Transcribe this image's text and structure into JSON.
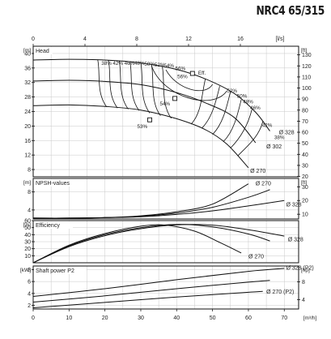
{
  "page": {
    "title": "NRC4 65/315"
  },
  "chart_data": {
    "type": "line",
    "axes": {
      "top_flow": {
        "label": "[l/s]",
        "ticks": [
          "0",
          "4",
          "8",
          "12",
          "16"
        ],
        "values": [
          0,
          4,
          8,
          12,
          16
        ],
        "lim": [
          0,
          20.5
        ]
      },
      "bottom_flow": {
        "label": "[m³/h]",
        "ticks": [
          "0",
          "10",
          "20",
          "30",
          "40",
          "50",
          "60",
          "70"
        ],
        "values": [
          0,
          10,
          20,
          30,
          40,
          50,
          60,
          70
        ],
        "lim": [
          0,
          74
        ]
      }
    },
    "panels": {
      "head": {
        "title": "Head",
        "unit_left": "[m]",
        "unit_right": "[ft]",
        "ylim": [
          6,
          42
        ],
        "ticks_left": [
          8,
          12,
          16,
          20,
          24,
          28,
          32,
          36,
          40
        ],
        "ticks_right": [
          20,
          30,
          40,
          50,
          60,
          70,
          80,
          90,
          100,
          110,
          120,
          130
        ],
        "curves": [
          {
            "name": "Ø 328",
            "x": [
              0,
              10,
              20,
              30,
              40,
              48,
              56,
              62,
              66
            ],
            "y": [
              38.2,
              38.4,
              38.2,
              37.4,
              35.6,
              33,
              29,
              23.8,
              18.6
            ]
          },
          {
            "name": "Ø 302",
            "x": [
              0,
              10,
              20,
              30,
              40,
              48,
              56,
              62
            ],
            "y": [
              32.4,
              32.6,
              32.3,
              31.4,
              29.2,
              26.4,
              22.4,
              15.4
            ]
          },
          {
            "name": "Ø 270",
            "x": [
              0,
              10,
              20,
              30,
              40,
              48,
              54,
              60
            ],
            "y": [
              25.6,
              25.8,
              25.4,
              24.4,
              22,
              19,
              15,
              8.5
            ]
          }
        ],
        "curve_labels": [
          {
            "text": "Ø 328",
            "x": 68.5,
            "y": 18.3
          },
          {
            "text": "Ø 302",
            "x": 65,
            "y": 14.4
          },
          {
            "text": "Ø 270",
            "x": 60.5,
            "y": 7.7
          }
        ],
        "efficiency_labels": [
          {
            "text": "38%",
            "x": 19,
            "y": 37.3
          },
          {
            "text": "42%",
            "x": 22.2,
            "y": 37.3
          },
          {
            "text": "46%",
            "x": 25.4,
            "y": 37.3
          },
          {
            "text": "48%",
            "x": 28.2,
            "y": 37.3
          },
          {
            "text": "50%",
            "x": 31,
            "y": 37.1
          },
          {
            "text": "52%",
            "x": 33.8,
            "y": 36.9
          },
          {
            "text": "54%",
            "x": 36.4,
            "y": 36.6
          },
          {
            "text": "56%",
            "x": 39.6,
            "y": 35.9
          },
          {
            "text": "56%",
            "x": 40.2,
            "y": 33.6
          },
          {
            "text": "Eff.",
            "x": 46,
            "y": 34.6
          },
          {
            "text": "52%",
            "x": 54,
            "y": 29.7
          },
          {
            "text": "50%",
            "x": 56.8,
            "y": 28.2
          },
          {
            "text": "48%",
            "x": 58.5,
            "y": 26.7
          },
          {
            "text": "46%",
            "x": 60.5,
            "y": 25
          },
          {
            "text": "54%",
            "x": 35.3,
            "y": 26.1
          },
          {
            "text": "53%",
            "x": 29,
            "y": 19.9
          },
          {
            "text": "42%",
            "x": 63.8,
            "y": 20.2
          },
          {
            "text": "38%",
            "x": 67.2,
            "y": 16.8
          }
        ],
        "markers": [
          {
            "x": 44.4,
            "y": 34.5
          },
          {
            "x": 39.5,
            "y": 27.6
          },
          {
            "x": 32.5,
            "y": 21.7
          }
        ]
      },
      "npsh": {
        "title": "NPSH-values",
        "unit_left": "[m]",
        "unit_right": "[ft]",
        "ylim": [
          2,
          11
        ],
        "ticks_left": [
          4,
          8
        ],
        "ticks_right": [
          10,
          20,
          30
        ],
        "curves": [
          {
            "name": "Ø 270",
            "x": [
              0,
              10,
              20,
              30,
              40,
              50,
              60
            ],
            "y": [
              2.2,
              2.2,
              2.3,
              2.7,
              3.6,
              5.3,
              9.8
            ]
          },
          {
            "name": "",
            "x": [
              0,
              10,
              20,
              30,
              40,
              50,
              60,
              66
            ],
            "y": [
              2.2,
              2.2,
              2.3,
              2.6,
              3.3,
              4.6,
              6.8,
              8.5
            ]
          },
          {
            "name": "Ø 328",
            "x": [
              0,
              10,
              20,
              30,
              40,
              50,
              60,
              70
            ],
            "y": [
              2.2,
              2.2,
              2.3,
              2.5,
              3,
              3.8,
              4.9,
              6.1
            ]
          }
        ],
        "curve_labels": [
          {
            "text": "Ø 270",
            "x": 62,
            "y": 9.9
          },
          {
            "text": "Ø 328",
            "x": 70.5,
            "y": 5.2
          }
        ]
      },
      "efficiency": {
        "title": "Efficiency",
        "unit_left": "[%]",
        "ylim": [
          0,
          60
        ],
        "ticks_left": [
          10,
          20,
          30,
          40,
          50,
          60
        ],
        "curves": [
          {
            "name": "Ø 328",
            "x": [
              0,
              10,
              20,
              30,
              40,
              50,
              60,
              70
            ],
            "y": [
              0,
              23,
              38.5,
              48.5,
              54,
              53.5,
              47,
              38
            ]
          },
          {
            "name": "",
            "x": [
              0,
              10,
              20,
              30,
              40,
              50,
              60,
              66
            ],
            "y": [
              0,
              24,
              40,
              50,
              54.6,
              51,
              41,
              31
            ]
          },
          {
            "name": "Ø 270",
            "x": [
              0,
              10,
              20,
              30,
              37,
              45,
              52,
              58
            ],
            "y": [
              0,
              25,
              41.5,
              52,
              53.5,
              45,
              29,
              14
            ]
          }
        ],
        "curve_labels": [
          {
            "text": "Ø 328",
            "x": 71,
            "y": 33.5
          },
          {
            "text": "Ø 270",
            "x": 60,
            "y": 9
          }
        ]
      },
      "shaft_power": {
        "title": "Shaft power P2",
        "unit_left": "[kW]",
        "unit_right": "[hp]",
        "ylim": [
          1.4,
          8.6
        ],
        "ticks_left": [
          2,
          4,
          6,
          8
        ],
        "ticks_right": [
          4,
          8
        ],
        "curves": [
          {
            "name": "Ø 328 (P2)",
            "x": [
              0,
              20,
              40,
              60,
              70
            ],
            "y": [
              3.5,
              4.8,
              6.3,
              7.7,
              8.2
            ]
          },
          {
            "name": "",
            "x": [
              0,
              20,
              40,
              60,
              66
            ],
            "y": [
              2.55,
              3.6,
              4.8,
              5.9,
              6.2
            ]
          },
          {
            "name": "Ø 270 (P2)",
            "x": [
              0,
              20,
              40,
              60,
              64
            ],
            "y": [
              1.6,
              2.5,
              3.4,
              4.2,
              4.35
            ]
          }
        ],
        "curve_labels": [
          {
            "text": "Ø 328 (P2)",
            "x": 70.5,
            "y": 8.3
          },
          {
            "text": "Ø 270 (P2)",
            "x": 65,
            "y": 4.3
          }
        ]
      }
    }
  }
}
